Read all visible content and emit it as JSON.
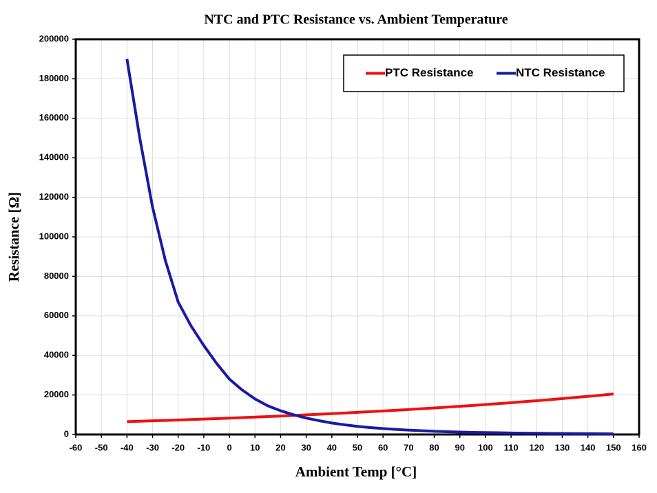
{
  "chart_data": {
    "type": "line",
    "title": "NTC and PTC Resistance vs. Ambient Temperature",
    "x_label": "Ambient Temp [°C]",
    "y_label": "Resistance [Ω]",
    "x": [
      -40,
      -35,
      -30,
      -25,
      -20,
      -15,
      -10,
      -5,
      0,
      5,
      10,
      15,
      20,
      25,
      30,
      35,
      40,
      45,
      50,
      55,
      60,
      65,
      70,
      75,
      80,
      85,
      90,
      95,
      100,
      105,
      110,
      115,
      120,
      125,
      130,
      135,
      140,
      145,
      150
    ],
    "series": [
      {
        "name": "PTC Resistance",
        "color": "#ee1111",
        "values": [
          6500,
          6700,
          6905,
          7117,
          7335,
          7560,
          7792,
          8031,
          8277,
          8531,
          8793,
          9062,
          9340,
          9627,
          9922,
          10227,
          10540,
          10863,
          11197,
          11540,
          11894,
          12259,
          12634,
          13022,
          13421,
          13833,
          14257,
          14694,
          15145,
          15609,
          16088,
          16581,
          17090,
          17614,
          18154,
          18711,
          19284,
          19876,
          20485
        ]
      },
      {
        "name": "NTC Resistance",
        "color": "#1a1aa6",
        "values": [
          190000,
          150000,
          115000,
          88000,
          67000,
          55000,
          45000,
          36000,
          28000,
          22500,
          18000,
          14500,
          12000,
          10000,
          8300,
          7000,
          5800,
          4900,
          4100,
          3500,
          3000,
          2550,
          2200,
          1900,
          1600,
          1400,
          1200,
          1050,
          950,
          850,
          750,
          670,
          600,
          540,
          480,
          430,
          390,
          350,
          320
        ]
      }
    ],
    "xlim": [
      -60,
      160
    ],
    "xticks": [
      -60,
      -50,
      -40,
      -30,
      -20,
      -10,
      0,
      10,
      20,
      30,
      40,
      50,
      60,
      70,
      80,
      90,
      100,
      110,
      120,
      130,
      140,
      150,
      160
    ],
    "ylim": [
      0,
      200000
    ],
    "yticks": [
      0,
      20000,
      40000,
      60000,
      80000,
      100000,
      120000,
      140000,
      160000,
      180000,
      200000
    ],
    "grid": true,
    "legend": "top-right"
  }
}
